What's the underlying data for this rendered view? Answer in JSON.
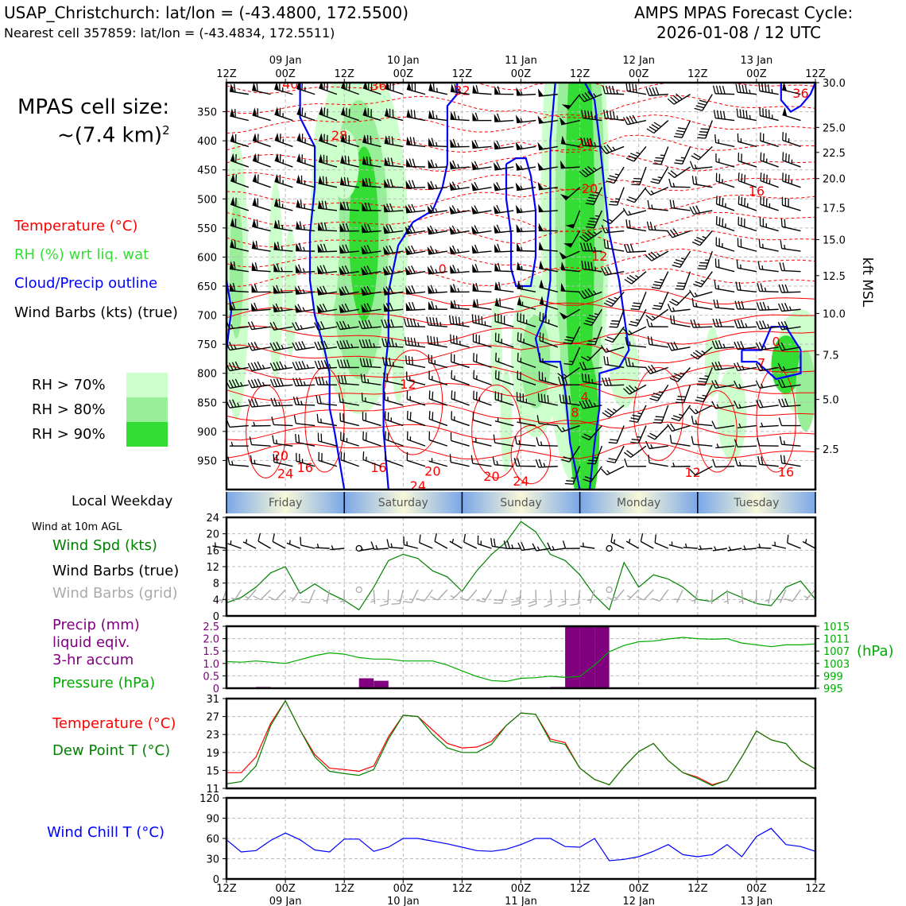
{
  "header": {
    "station": "USAP_Christchurch: lat/lon = (-43.4800, 172.5500)",
    "nearest": "Nearest cell 357859: lat/lon = (-43.4834, 172.5511)",
    "cycle_title": "AMPS MPAS Forecast Cycle:",
    "cycle_time": "2026-01-08 / 12 UTC"
  },
  "cell_size": {
    "line1": "MPAS cell size:",
    "line2": "~(7.4 km)",
    "sup": "2"
  },
  "legend_upper": [
    {
      "label": "Temperature (°C)",
      "color": "#ff0000"
    },
    {
      "label": "RH (%) wrt liq. wat",
      "color": "#33dd33"
    },
    {
      "label": "Cloud/Precip outline",
      "color": "#0000ff"
    },
    {
      "label": "Wind Barbs (kts) (true)",
      "color": "#000000"
    }
  ],
  "rh_legend": [
    {
      "label": "RH > 70%",
      "color": "#ccffcc"
    },
    {
      "label": "RH > 80%",
      "color": "#99ee99"
    },
    {
      "label": "RH > 90%",
      "color": "#33dd33"
    }
  ],
  "time_axis": {
    "top_ticks": [
      "12Z",
      "00Z",
      "12Z",
      "00Z",
      "12Z",
      "00Z",
      "12Z",
      "00Z",
      "12Z",
      "00Z",
      "12Z"
    ],
    "dates": [
      "09 Jan",
      "10 Jan",
      "11 Jan",
      "12 Jan",
      "13 Jan"
    ],
    "bottom_ticks": [
      "12Z",
      "00Z",
      "12Z",
      "00Z",
      "12Z",
      "00Z",
      "12Z",
      "00Z",
      "12Z",
      "00Z",
      "12Z"
    ]
  },
  "weekday": {
    "label": "Local Weekday",
    "days": [
      "Friday",
      "Saturday",
      "Sunday",
      "Monday",
      "Tuesday"
    ]
  },
  "sfc_panel": {
    "header": "Wind at 10m AGL",
    "labels": [
      {
        "text": "Wind Spd (kts)",
        "color": "#008000"
      },
      {
        "text": "Wind Barbs (true)",
        "color": "#000000"
      },
      {
        "text": "Wind Barbs (grid)",
        "color": "#aaaaaa"
      }
    ]
  },
  "precip_panel": {
    "labels": [
      {
        "text": "Precip (mm)",
        "color": "#800080"
      },
      {
        "text": "liquid eqiv.",
        "color": "#800080"
      },
      {
        "text": "3-hr accum",
        "color": "#800080"
      },
      {
        "text": "Pressure (hPa)",
        "color": "#00aa00"
      }
    ],
    "right_unit": "(hPa)"
  },
  "temp_panel": {
    "labels": [
      {
        "text": "Temperature (°C)",
        "color": "#ff0000"
      },
      {
        "text": "Dew Point T (°C)",
        "color": "#008000"
      }
    ]
  },
  "chill_panel": {
    "labels": [
      {
        "text": "Wind Chill T (°C)",
        "color": "#0000ff"
      }
    ]
  },
  "chart_data": [
    {
      "type": "heatmap",
      "name_hidden": "cross-section",
      "x_range_hours": [
        0,
        120
      ],
      "y_left_label": "",
      "y_left_ticks": [
        350,
        400,
        450,
        500,
        550,
        600,
        650,
        700,
        750,
        800,
        850,
        900,
        950
      ],
      "y_left_range": [
        1000,
        300
      ],
      "y_right_label": "kft MSL",
      "y_right_ticks": [
        {
          "p": 300,
          "label": "30.0"
        },
        {
          "p": 377,
          "label": "25.0"
        },
        {
          "p": 420,
          "label": "22.5"
        },
        {
          "p": 465,
          "label": "20.0"
        },
        {
          "p": 515,
          "label": "17.5"
        },
        {
          "p": 570,
          "label": "15.0"
        },
        {
          "p": 632,
          "label": "12.5"
        },
        {
          "p": 697,
          "label": "10.0"
        },
        {
          "p": 768,
          "label": "7.5"
        },
        {
          "p": 845,
          "label": "5.0"
        },
        {
          "p": 930,
          "label": "2.5"
        }
      ],
      "temp_labels": [
        {
          "t": 13,
          "p": 302,
          "v": "40"
        },
        {
          "t": 31,
          "p": 305,
          "v": "36"
        },
        {
          "t": 48,
          "p": 313,
          "v": "32"
        },
        {
          "t": 23,
          "p": 390,
          "v": "28"
        },
        {
          "t": 117,
          "p": 318,
          "v": "36"
        },
        {
          "t": 73,
          "p": 404,
          "v": "24"
        },
        {
          "t": 74,
          "p": 482,
          "v": "20"
        },
        {
          "t": 108,
          "p": 486,
          "v": "16"
        },
        {
          "t": 76,
          "p": 598,
          "v": "12"
        },
        {
          "t": 44,
          "p": 620,
          "v": "0"
        },
        {
          "t": 112,
          "p": 745,
          "v": "0"
        },
        {
          "t": 109,
          "p": 782,
          "v": "7"
        },
        {
          "t": 37,
          "p": 818,
          "v": "12"
        },
        {
          "t": 73,
          "p": 840,
          "v": "4"
        },
        {
          "t": 71,
          "p": 867,
          "v": "8"
        },
        {
          "t": 11,
          "p": 941,
          "v": "20"
        },
        {
          "t": 16,
          "p": 962,
          "v": "16"
        },
        {
          "t": 12,
          "p": 972,
          "v": "24"
        },
        {
          "t": 31,
          "p": 962,
          "v": "16"
        },
        {
          "t": 42,
          "p": 968,
          "v": "20"
        },
        {
          "t": 39,
          "p": 993,
          "v": "24"
        },
        {
          "t": 54,
          "p": 977,
          "v": "20"
        },
        {
          "t": 60,
          "p": 985,
          "v": "24"
        },
        {
          "t": 95,
          "p": 970,
          "v": "12"
        },
        {
          "t": 114,
          "p": 969,
          "v": "16"
        }
      ]
    },
    {
      "type": "line",
      "name_hidden": "wind-speed",
      "ylabel": "",
      "ylim": [
        0,
        24
      ],
      "yticks": [
        0,
        4,
        8,
        12,
        16,
        20,
        24
      ],
      "x": [
        0,
        3,
        6,
        9,
        12,
        15,
        18,
        21,
        24,
        27,
        30,
        33,
        36,
        39,
        42,
        45,
        48,
        51,
        54,
        57,
        60,
        63,
        66,
        69,
        72,
        75,
        78,
        81,
        84,
        87,
        90,
        93,
        96,
        99,
        102,
        105,
        108,
        111,
        114,
        117,
        120
      ],
      "series": [
        {
          "values": [
            3.2,
            4.5,
            7.0,
            10.5,
            12.0,
            5.5,
            7.8,
            5.5,
            3.8,
            1.5,
            7.0,
            13.5,
            15.0,
            14.0,
            11.0,
            9.5,
            6.0,
            11.0,
            15.0,
            18.0,
            23.0,
            20.5,
            15.0,
            13.5,
            10.0,
            5.0,
            1.5,
            13.0,
            7.0,
            10.0,
            9.0,
            7.0,
            4.0,
            3.5,
            6.0,
            4.5,
            3.0,
            2.5,
            7.0,
            8.5,
            4.0
          ]
        }
      ]
    },
    {
      "type": "bar",
      "name_hidden": "precip",
      "ylabel": "",
      "ylim": [
        0,
        2.5
      ],
      "yticks": [
        "0",
        "0.5",
        "1.0",
        "1.5",
        "2.0",
        "2.5"
      ],
      "bars": [
        {
          "t0": 6,
          "t1": 9,
          "v": 0.05
        },
        {
          "t0": 27,
          "t1": 30,
          "v": 0.4
        },
        {
          "t0": 30,
          "t1": 33,
          "v": 0.3
        },
        {
          "t0": 66,
          "t1": 69,
          "v": 0.05
        },
        {
          "t0": 69,
          "t1": 72,
          "v": 2.5
        },
        {
          "t0": 72,
          "t1": 75,
          "v": 2.5
        },
        {
          "t0": 75,
          "t1": 78,
          "v": 2.5
        }
      ]
    },
    {
      "type": "line",
      "name_hidden": "pressure",
      "ylim": [
        995,
        1015
      ],
      "yticks": [
        "1015",
        "1011",
        "1007",
        "1003",
        "999",
        "995"
      ],
      "x": [
        0,
        3,
        6,
        9,
        12,
        15,
        18,
        21,
        24,
        27,
        30,
        33,
        36,
        39,
        42,
        45,
        48,
        51,
        54,
        57,
        60,
        63,
        66,
        69,
        72,
        75,
        78,
        81,
        84,
        87,
        90,
        93,
        96,
        99,
        102,
        105,
        108,
        111,
        114,
        117,
        120
      ],
      "series": [
        {
          "values": [
            1003.6,
            1003.4,
            1003.8,
            1003.4,
            1003.0,
            1004.2,
            1005.5,
            1006.4,
            1006.0,
            1004.9,
            1004.4,
            1004.4,
            1003.8,
            1003.8,
            1003.8,
            1002.5,
            1000.6,
            998.8,
            997.5,
            997.2,
            998.2,
            998.4,
            998.9,
            998.5,
            998.8,
            1002.5,
            1006.8,
            1008.8,
            1010.0,
            1010.2,
            1010.9,
            1011.4,
            1011.0,
            1010.8,
            1011.0,
            1009.6,
            1009.0,
            1008.4,
            1009.0,
            1009.0,
            1009.3
          ]
        }
      ]
    },
    {
      "type": "line",
      "name_hidden": "temperature-dewpoint",
      "ylim": [
        11,
        31
      ],
      "yticks": [
        11,
        15,
        19,
        23,
        27,
        31
      ],
      "x": [
        0,
        3,
        6,
        9,
        12,
        15,
        18,
        21,
        24,
        27,
        30,
        33,
        36,
        39,
        42,
        45,
        48,
        51,
        54,
        57,
        60,
        63,
        66,
        69,
        72,
        75,
        78,
        81,
        84,
        87,
        90,
        93,
        96,
        99,
        102,
        105,
        108,
        111,
        114,
        117,
        120
      ],
      "series": [
        {
          "name": "Temperature (°C)",
          "color": "#ff0000",
          "values": [
            14.5,
            14.5,
            18.0,
            25.5,
            30.5,
            24.0,
            18.5,
            15.5,
            15.2,
            14.8,
            16.0,
            22.5,
            27.3,
            27.0,
            24.0,
            21.0,
            20.0,
            20.2,
            21.5,
            25.0,
            27.8,
            27.5,
            22.0,
            21.2,
            15.5,
            13.0,
            11.8,
            15.8,
            19.2,
            21.0,
            17.2,
            14.5,
            13.5,
            11.8,
            12.8,
            18.0,
            23.8,
            21.8,
            21.0,
            17.2,
            15.3
          ]
        },
        {
          "name": "Dew Point T (°C)",
          "color": "#008000",
          "values": [
            12.0,
            12.5,
            16.0,
            25.0,
            30.5,
            24.0,
            18.0,
            14.8,
            14.3,
            13.9,
            15.2,
            22.0,
            27.3,
            27.0,
            23.0,
            20.0,
            19.0,
            19.0,
            20.8,
            25.0,
            27.8,
            27.5,
            21.5,
            20.8,
            15.5,
            13.0,
            11.8,
            15.8,
            19.2,
            21.0,
            17.2,
            14.5,
            13.2,
            11.6,
            12.8,
            18.0,
            23.8,
            21.8,
            21.0,
            17.2,
            15.3
          ]
        }
      ]
    },
    {
      "type": "line",
      "name_hidden": "wind-chill",
      "ylim": [
        0,
        120
      ],
      "yticks": [
        0,
        30,
        60,
        90,
        120
      ],
      "x": [
        0,
        3,
        6,
        9,
        12,
        15,
        18,
        21,
        24,
        27,
        30,
        33,
        36,
        39,
        42,
        45,
        48,
        51,
        54,
        57,
        60,
        63,
        66,
        69,
        72,
        75,
        78,
        81,
        84,
        87,
        90,
        93,
        96,
        99,
        102,
        105,
        108,
        111,
        114,
        117,
        120
      ],
      "series": [
        {
          "values": [
            58,
            40,
            42,
            57,
            68,
            58,
            43,
            40,
            59,
            59,
            41,
            47,
            60,
            60,
            56,
            52,
            47,
            42,
            41,
            44,
            51,
            60,
            60,
            48,
            47,
            60,
            27,
            29,
            33,
            41,
            51,
            36,
            33,
            36,
            51,
            33,
            63,
            75,
            51,
            48,
            41
          ]
        }
      ]
    }
  ]
}
